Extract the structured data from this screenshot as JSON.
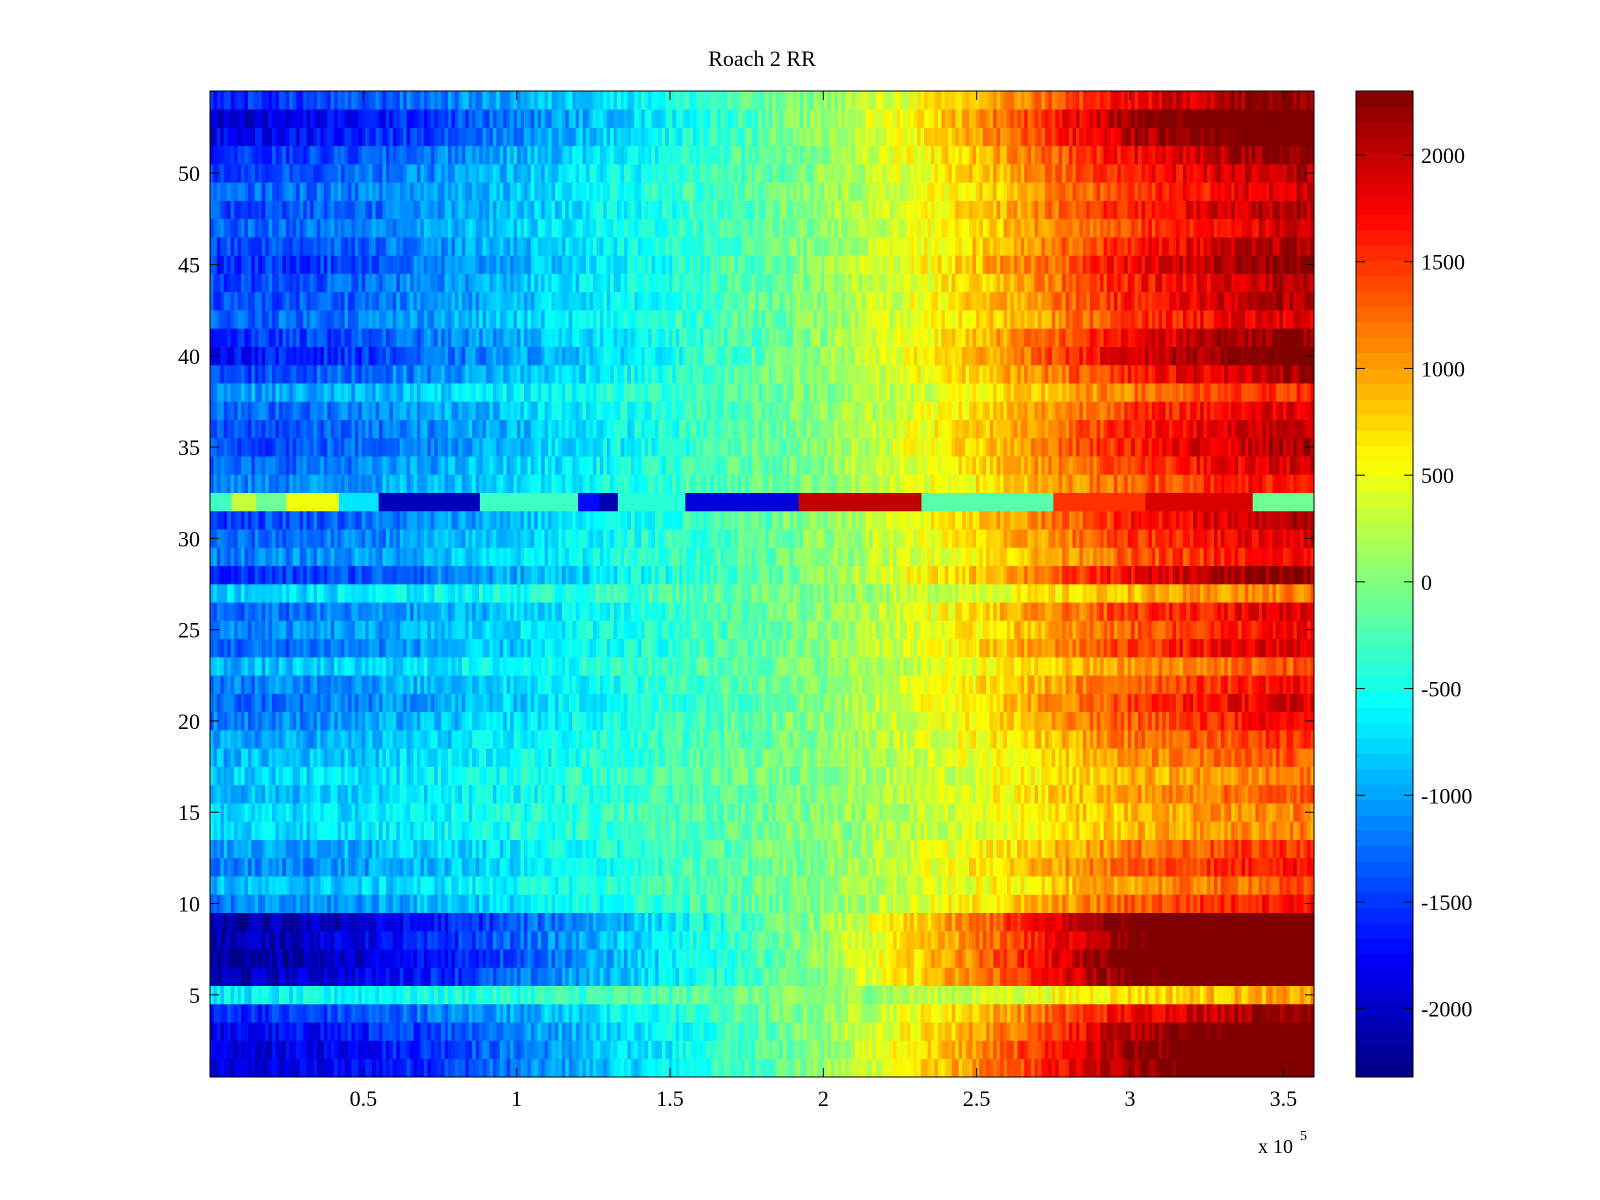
{
  "chart_data": {
    "type": "heatmap",
    "title": "Roach 2 RR",
    "xlabel": "",
    "ylabel": "",
    "x_scale_label": "x 10",
    "x_scale_exponent": "5",
    "xlim": [
      0,
      3.6
    ],
    "ylim": [
      0.5,
      54.5
    ],
    "x_units_multiplier": 100000,
    "x_ticks": [
      0.5,
      1,
      1.5,
      2,
      2.5,
      3,
      3.5
    ],
    "x_tick_labels": [
      "0.5",
      "1",
      "1.5",
      "2",
      "2.5",
      "3",
      "3.5"
    ],
    "y_ticks": [
      5,
      10,
      15,
      20,
      25,
      30,
      35,
      40,
      45,
      50
    ],
    "y_tick_labels": [
      "5",
      "10",
      "15",
      "20",
      "25",
      "30",
      "35",
      "40",
      "45",
      "50"
    ],
    "colorbar": {
      "colormap": "jet",
      "clim": [
        -2320,
        2300
      ],
      "ticks": [
        -2000,
        -1500,
        -1000,
        -500,
        0,
        500,
        1000,
        1500,
        2000
      ],
      "tick_labels": [
        "-2000",
        "-1500",
        "-1000",
        "-500",
        "0",
        "500",
        "1000",
        "1500",
        "2000"
      ]
    },
    "rows": 54,
    "trend_columns_x": [
      0.1,
      0.5,
      1.0,
      1.5,
      2.0,
      2.5,
      3.0,
      3.5
    ],
    "trend_values": [
      -1300,
      -1150,
      -800,
      -400,
      50,
      700,
      1450,
      1900
    ],
    "row_deviation": [
      {
        "row": 1,
        "scale": 1.5
      },
      {
        "row": 2,
        "scale": 1.5
      },
      {
        "row": 3,
        "scale": 1.4
      },
      {
        "row": 4,
        "scale": 1.2
      },
      {
        "row": 5,
        "scale": 0.5
      },
      {
        "row": 6,
        "scale": 1.6
      },
      {
        "row": 7,
        "scale": 1.7
      },
      {
        "row": 8,
        "scale": 1.6
      },
      {
        "row": 9,
        "scale": 1.7
      },
      {
        "row": 10,
        "scale": 0.9
      },
      {
        "row": 11,
        "scale": 0.7
      },
      {
        "row": 12,
        "scale": 0.9
      },
      {
        "row": 13,
        "scale": 0.8
      },
      {
        "row": 14,
        "scale": 0.6
      },
      {
        "row": 15,
        "scale": 0.6
      },
      {
        "row": 16,
        "scale": 0.7
      },
      {
        "row": 17,
        "scale": 0.6
      },
      {
        "row": 18,
        "scale": 0.7
      },
      {
        "row": 19,
        "scale": 0.8
      },
      {
        "row": 20,
        "scale": 0.9
      },
      {
        "row": 21,
        "scale": 1.0
      },
      {
        "row": 22,
        "scale": 0.9
      },
      {
        "row": 23,
        "scale": 0.7
      },
      {
        "row": 24,
        "scale": 1.0
      },
      {
        "row": 25,
        "scale": 0.9
      },
      {
        "row": 26,
        "scale": 1.0
      },
      {
        "row": 27,
        "scale": 0.6
      },
      {
        "row": 28,
        "scale": 1.2
      },
      {
        "row": 29,
        "scale": 0.9
      },
      {
        "row": 30,
        "scale": 1.0
      },
      {
        "row": 31,
        "scale": 1.1
      },
      {
        "row": 33,
        "scale": 0.9
      },
      {
        "row": 34,
        "scale": 1.0
      },
      {
        "row": 35,
        "scale": 1.1
      },
      {
        "row": 36,
        "scale": 1.1
      },
      {
        "row": 37,
        "scale": 1.0
      },
      {
        "row": 38,
        "scale": 0.8
      },
      {
        "row": 39,
        "scale": 1.1
      },
      {
        "row": 40,
        "scale": 1.3
      },
      {
        "row": 41,
        "scale": 1.2
      },
      {
        "row": 42,
        "scale": 1.0
      },
      {
        "row": 43,
        "scale": 1.1
      },
      {
        "row": 44,
        "scale": 1.1
      },
      {
        "row": 45,
        "scale": 1.2
      },
      {
        "row": 46,
        "scale": 1.1
      },
      {
        "row": 47,
        "scale": 1.0
      },
      {
        "row": 48,
        "scale": 1.1
      },
      {
        "row": 49,
        "scale": 1.0
      },
      {
        "row": 50,
        "scale": 1.1
      },
      {
        "row": 51,
        "scale": 1.2
      },
      {
        "row": 52,
        "scale": 1.4
      },
      {
        "row": 53,
        "scale": 1.5
      },
      {
        "row": 54,
        "scale": 1.2
      }
    ],
    "anomalous_row": {
      "row": 32,
      "segments": [
        {
          "x_from": 0.0,
          "x_to": 0.07,
          "value": -300
        },
        {
          "x_from": 0.07,
          "x_to": 0.15,
          "value": 300
        },
        {
          "x_from": 0.15,
          "x_to": 0.25,
          "value": -100
        },
        {
          "x_from": 0.25,
          "x_to": 0.42,
          "value": 500
        },
        {
          "x_from": 0.42,
          "x_to": 0.55,
          "value": -700
        },
        {
          "x_from": 0.55,
          "x_to": 0.88,
          "value": -2050
        },
        {
          "x_from": 0.88,
          "x_to": 1.2,
          "value": -300
        },
        {
          "x_from": 1.2,
          "x_to": 1.27,
          "value": -1700
        },
        {
          "x_from": 1.27,
          "x_to": 1.33,
          "value": -2100
        },
        {
          "x_from": 1.33,
          "x_to": 1.55,
          "value": -400
        },
        {
          "x_from": 1.55,
          "x_to": 1.92,
          "value": -1900
        },
        {
          "x_from": 1.92,
          "x_to": 2.32,
          "value": 2000
        },
        {
          "x_from": 2.32,
          "x_to": 2.75,
          "value": -200
        },
        {
          "x_from": 2.75,
          "x_to": 3.05,
          "value": 1500
        },
        {
          "x_from": 3.05,
          "x_to": 3.4,
          "value": 1900
        },
        {
          "x_from": 3.4,
          "x_to": 3.6,
          "value": -100
        }
      ]
    }
  }
}
